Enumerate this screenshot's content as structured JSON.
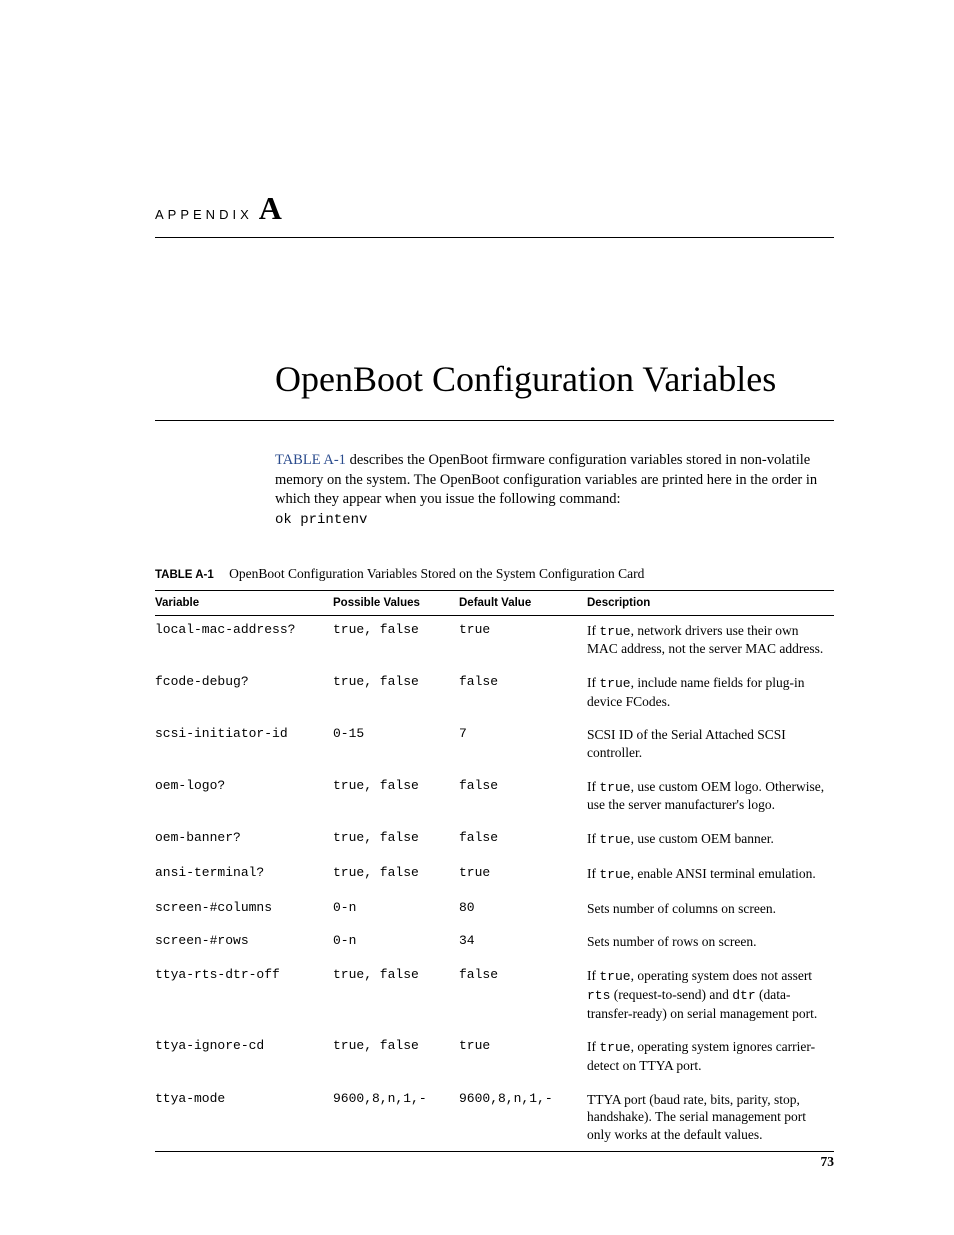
{
  "appendix": {
    "prefix": "APPENDIX",
    "letter": "A"
  },
  "title": "OpenBoot Configuration Variables",
  "intro": {
    "link_text": "TABLE A-1",
    "body_1": " describes the OpenBoot firmware configuration variables stored in non-volatile memory on the system. The OpenBoot configuration variables are printed here in the order in which they appear when you issue the following command:",
    "cmd": "ok printenv"
  },
  "table_caption": {
    "label": "TABLE A-1",
    "text": "OpenBoot Configuration Variables Stored on the System Configuration Card"
  },
  "columns": [
    "Variable",
    "Possible Values",
    "Default Value",
    "Description"
  ],
  "rows": [
    {
      "var": "local-mac-address?",
      "possible": "true, false",
      "default": "true",
      "desc": [
        {
          "t": "If "
        },
        {
          "c": "true"
        },
        {
          "t": ", network drivers use their own MAC address, not the server MAC address."
        }
      ]
    },
    {
      "var": "fcode-debug?",
      "possible": "true, false",
      "default": "false",
      "desc": [
        {
          "t": "If "
        },
        {
          "c": "true"
        },
        {
          "t": ", include name fields for plug-in device FCodes."
        }
      ]
    },
    {
      "var": "scsi-initiator-id",
      "possible": "0-15",
      "default": "7",
      "desc": [
        {
          "t": "SCSI ID of the Serial Attached SCSI controller."
        }
      ]
    },
    {
      "var": "oem-logo?",
      "possible": "true, false",
      "default": "false",
      "desc": [
        {
          "t": "If "
        },
        {
          "c": "true"
        },
        {
          "t": ", use custom OEM logo. Otherwise, use the server manufacturer's logo."
        }
      ]
    },
    {
      "var": "oem-banner?",
      "possible": "true, false",
      "default": "false",
      "desc": [
        {
          "t": "If "
        },
        {
          "c": "true"
        },
        {
          "t": ", use custom OEM banner."
        }
      ]
    },
    {
      "var": "ansi-terminal?",
      "possible": "true, false",
      "default": "true",
      "desc": [
        {
          "t": "If "
        },
        {
          "c": "true"
        },
        {
          "t": ", enable ANSI terminal emulation."
        }
      ]
    },
    {
      "var": "screen-#columns",
      "possible": "0-n",
      "default": "80",
      "desc": [
        {
          "t": "Sets number of columns on screen."
        }
      ]
    },
    {
      "var": "screen-#rows",
      "possible": "0-n",
      "default": "34",
      "desc": [
        {
          "t": "Sets number of rows on screen."
        }
      ]
    },
    {
      "var": "ttya-rts-dtr-off",
      "possible": "true, false",
      "default": "false",
      "desc": [
        {
          "t": "If "
        },
        {
          "c": "true"
        },
        {
          "t": ", operating system does not assert "
        },
        {
          "c": "rts"
        },
        {
          "t": " (request-to-send) and "
        },
        {
          "c": "dtr"
        },
        {
          "t": " (data-transfer-ready) on serial management port."
        }
      ]
    },
    {
      "var": "ttya-ignore-cd",
      "possible": "true, false",
      "default": "true",
      "desc": [
        {
          "t": "If "
        },
        {
          "c": "true"
        },
        {
          "t": ", operating system ignores carrier-detect on TTYA port."
        }
      ]
    },
    {
      "var": "ttya-mode",
      "possible": "9600,8,n,1,-",
      "default": "9600,8,n,1,-",
      "desc": [
        {
          "t": "TTYA port (baud rate, bits, parity, stop, handshake). The serial management port only works at the default values."
        }
      ]
    }
  ],
  "page_number": "73"
}
